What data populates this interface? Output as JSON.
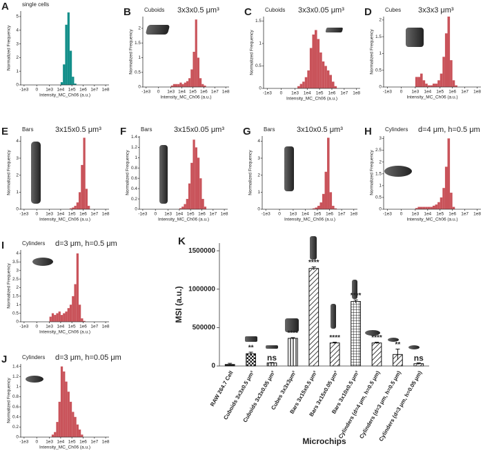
{
  "chart_data": [
    {
      "type": "histogram",
      "panel_label": "A",
      "title": "single cells",
      "xlabel": "Intensity_MC_Ch06 (a.u.)",
      "ylabel": "Normalized Frequency",
      "color": "#138f8a",
      "xscale": "biexponential",
      "bins": [
        1000,
        1585,
        2512,
        3981,
        6310,
        10000,
        15849,
        25119,
        39811,
        63096,
        100000,
        158489,
        251189,
        398107,
        630957,
        1000000,
        1584893,
        2511886,
        3981072,
        6309573,
        10000000
      ],
      "counts": [
        0,
        0,
        0,
        0,
        0,
        0.2,
        1.5,
        4.4,
        5.3,
        2.5,
        0.6,
        0.1,
        0,
        0,
        0,
        0,
        0,
        0,
        0,
        0
      ],
      "xlim": [
        -2000,
        200000000
      ],
      "xticks": [
        {
          "value": -1000,
          "label": "-1e3"
        },
        0,
        {
          "value": 1000,
          "label": "1e3"
        },
        {
          "value": 10000,
          "label": "1e4"
        },
        {
          "value": 100000,
          "label": "1e5"
        },
        {
          "value": 1000000,
          "label": "1e6"
        },
        {
          "value": 10000000,
          "label": "1e7"
        },
        {
          "value": 100000000,
          "label": "1e8"
        }
      ],
      "ylim": [
        0,
        5.4
      ],
      "yticks": [
        0,
        1,
        2,
        3,
        4,
        5
      ]
    },
    {
      "type": "histogram",
      "panel_label": "B",
      "title": "Cuboids",
      "subtitle": "3x3x0.5 μm³",
      "xlabel": "Intensity_MC_Ch06 (a.u.)",
      "ylabel": "Normalized Frequency",
      "color": "#c9535a",
      "xscale": "biexponential",
      "bins": [
        1000,
        1585,
        2512,
        3981,
        6310,
        10000,
        15849,
        25119,
        39811,
        63096,
        100000,
        158489,
        251189,
        398107,
        630957,
        1000000,
        1584893,
        2511886,
        3981072,
        6309573,
        10000000
      ],
      "counts": [
        0.05,
        0.1,
        0.1,
        0.1,
        0.15,
        0.1,
        0.15,
        0.2,
        0.3,
        0.6,
        1.2,
        2.3,
        1.0,
        0.3,
        0.1,
        0.05,
        0,
        0,
        0,
        0
      ],
      "xlim": [
        -2000,
        200000000
      ],
      "xticks": [
        {
          "value": -1000,
          "label": "-1e3"
        },
        0,
        {
          "value": 1000,
          "label": "1e3"
        },
        {
          "value": 10000,
          "label": "1e4"
        },
        {
          "value": 100000,
          "label": "1e5"
        },
        {
          "value": 1000000,
          "label": "1e6"
        },
        {
          "value": 10000000,
          "label": "1e7"
        },
        {
          "value": 100000000,
          "label": "1e8"
        }
      ],
      "ylim": [
        0,
        2.4
      ],
      "yticks": [
        0,
        0.5,
        1,
        1.5,
        2
      ]
    },
    {
      "type": "histogram",
      "panel_label": "C",
      "title": "Cuboids",
      "subtitle": "3x3x0.05 μm³",
      "xlabel": "Intensity_MC_Ch06 (a.u.)",
      "ylabel": "Normalized Frequency",
      "color": "#c9535a",
      "xscale": "biexponential",
      "bins": [
        1000,
        1585,
        2512,
        3981,
        6310,
        10000,
        15849,
        25119,
        39811,
        63096,
        100000,
        158489,
        251189,
        398107,
        630957,
        1000000,
        1584893,
        2511886,
        3981072,
        6309573,
        10000000
      ],
      "counts": [
        0,
        0.05,
        0.1,
        0.15,
        0.25,
        0.4,
        0.9,
        1.2,
        1.3,
        1.1,
        0.8,
        0.6,
        0.5,
        0.4,
        0.3,
        0.15,
        0.05,
        0,
        0,
        0
      ],
      "xlim": [
        -2000,
        200000000
      ],
      "xticks": [
        {
          "value": -1000,
          "label": "-1e3"
        },
        0,
        {
          "value": 1000,
          "label": "1e3"
        },
        {
          "value": 10000,
          "label": "1e4"
        },
        {
          "value": 100000,
          "label": "1e5"
        },
        {
          "value": 1000000,
          "label": "1e6"
        },
        {
          "value": 10000000,
          "label": "1e7"
        },
        {
          "value": 100000000,
          "label": "1e8"
        }
      ],
      "ylim": [
        0,
        1.6
      ],
      "yticks": [
        0,
        0.5,
        1,
        1.5
      ]
    },
    {
      "type": "histogram",
      "panel_label": "D",
      "title": "Cubes",
      "subtitle": "3x3x3 μm³",
      "xlabel": "Intensity_MC_Ch06 (a.u.)",
      "ylabel": "Normalized Frequency",
      "color": "#c9535a",
      "xscale": "biexponential",
      "bins": [
        1000,
        1585,
        2512,
        3981,
        6310,
        10000,
        15849,
        25119,
        39811,
        63096,
        100000,
        158489,
        251189,
        398107,
        630957,
        1000000,
        1584893,
        2511886,
        3981072,
        6309573,
        10000000
      ],
      "counts": [
        0.3,
        0.3,
        0.4,
        0.2,
        0.1,
        0.05,
        0.05,
        0.1,
        0.1,
        0.2,
        0.4,
        0.9,
        1.6,
        2.1,
        0.8,
        0.2,
        0.05,
        0,
        0,
        0
      ],
      "xlim": [
        -2000,
        200000000
      ],
      "xticks": [
        {
          "value": -1000,
          "label": "-1e3"
        },
        0,
        {
          "value": 1000,
          "label": "1e3"
        },
        {
          "value": 10000,
          "label": "1e4"
        },
        {
          "value": 100000,
          "label": "1e5"
        },
        {
          "value": 1000000,
          "label": "1e6"
        },
        {
          "value": 10000000,
          "label": "1e7"
        },
        {
          "value": 100000000,
          "label": "1e8"
        }
      ],
      "ylim": [
        0,
        2.1
      ],
      "yticks": [
        0,
        0.5,
        1,
        1.5,
        2
      ]
    },
    {
      "type": "histogram",
      "panel_label": "E",
      "title": "Bars",
      "subtitle": "3x15x0.5 μm³",
      "xlabel": "Intensity_MC_Ch06 (a.u.)",
      "ylabel": "Normalized Frequency",
      "color": "#c9535a",
      "xscale": "biexponential",
      "bins": [
        1000,
        1585,
        2512,
        3981,
        6310,
        10000,
        15849,
        25119,
        39811,
        63096,
        100000,
        158489,
        251189,
        398107,
        630957,
        1000000,
        1584893,
        2511886,
        3981072,
        6309573,
        10000000
      ],
      "counts": [
        0,
        0,
        0,
        0,
        0,
        0,
        0,
        0,
        0,
        0.05,
        0.1,
        0.2,
        0.4,
        1.0,
        2.6,
        4.2,
        1.2,
        0.2,
        0,
        0
      ],
      "xlim": [
        -2000,
        200000000
      ],
      "xticks": [
        {
          "value": -1000,
          "label": "-1e3"
        },
        0,
        {
          "value": 1000,
          "label": "1e3"
        },
        {
          "value": 10000,
          "label": "1e4"
        },
        {
          "value": 100000,
          "label": "1e5"
        },
        {
          "value": 1000000,
          "label": "1e6"
        },
        {
          "value": 10000000,
          "label": "1e7"
        },
        {
          "value": 100000000,
          "label": "1e8"
        }
      ],
      "ylim": [
        0,
        4.3
      ],
      "yticks": [
        0,
        1,
        2,
        3,
        4
      ]
    },
    {
      "type": "histogram",
      "panel_label": "F",
      "title": "Bars",
      "subtitle": "3x15x0.05 μm³",
      "xlabel": "Intensity_MC_Ch06 (a.u.)",
      "ylabel": "Normalized Frequency",
      "color": "#c9535a",
      "xscale": "biexponential",
      "bins": [
        1000,
        1585,
        2512,
        3981,
        6310,
        10000,
        15849,
        25119,
        39811,
        63096,
        100000,
        158489,
        251189,
        398107,
        630957,
        1000000,
        1584893,
        2511886,
        3981072,
        6309573,
        10000000
      ],
      "counts": [
        0,
        0,
        0,
        0,
        0,
        0.02,
        0.05,
        0.1,
        0.2,
        0.5,
        0.9,
        1.35,
        1.2,
        1.0,
        0.6,
        0.2,
        0.05,
        0,
        0,
        0
      ],
      "xlim": [
        -2000,
        200000000
      ],
      "xticks": [
        {
          "value": -1000,
          "label": "-1e3"
        },
        0,
        {
          "value": 1000,
          "label": "1e3"
        },
        {
          "value": 10000,
          "label": "1e4"
        },
        {
          "value": 100000,
          "label": "1e5"
        },
        {
          "value": 1000000,
          "label": "1e6"
        },
        {
          "value": 10000000,
          "label": "1e7"
        },
        {
          "value": 100000000,
          "label": "1e8"
        }
      ],
      "ylim": [
        0,
        1.42
      ],
      "yticks": [
        0,
        0.2,
        0.4,
        0.6,
        0.8,
        1,
        1.2,
        1.4
      ]
    },
    {
      "type": "histogram",
      "panel_label": "G",
      "title": "Bars",
      "subtitle": "3x10x0.5 μm³",
      "xlabel": "Intensity_MC_Ch06 (a.u.)",
      "ylabel": "Normalized Frequency",
      "color": "#c9535a",
      "xscale": "biexponential",
      "bins": [
        1000,
        1585,
        2512,
        3981,
        6310,
        10000,
        15849,
        25119,
        39811,
        63096,
        100000,
        158489,
        251189,
        398107,
        630957,
        1000000,
        1584893,
        2511886,
        3981072,
        6309573,
        10000000
      ],
      "counts": [
        0,
        0,
        0,
        0,
        0,
        0,
        0,
        0.02,
        0.05,
        0.1,
        0.2,
        0.4,
        0.9,
        2.2,
        4.2,
        1.0,
        0.2,
        0.05,
        0,
        0
      ],
      "xlim": [
        -2000,
        200000000
      ],
      "xticks": [
        {
          "value": -1000,
          "label": "-1e3"
        },
        0,
        {
          "value": 1000,
          "label": "1e3"
        },
        {
          "value": 10000,
          "label": "1e4"
        },
        {
          "value": 100000,
          "label": "1e5"
        },
        {
          "value": 1000000,
          "label": "1e6"
        },
        {
          "value": 10000000,
          "label": "1e7"
        },
        {
          "value": 100000000,
          "label": "1e8"
        }
      ],
      "ylim": [
        0,
        4.3
      ],
      "yticks": [
        0,
        1,
        2,
        3,
        4
      ]
    },
    {
      "type": "histogram",
      "panel_label": "H",
      "title": "Cylinders",
      "subtitle": "d=4 μm, h=0.5 μm",
      "xlabel": "Intensity_MC_Ch06 (a.u.)",
      "ylabel": "Normalized Frequency",
      "color": "#c9535a",
      "xscale": "biexponential",
      "bins": [
        1000,
        1585,
        2512,
        3981,
        6310,
        10000,
        15849,
        25119,
        39811,
        63096,
        100000,
        158489,
        251189,
        398107,
        630957,
        1000000,
        1584893,
        2511886,
        3981072,
        6309573,
        10000000
      ],
      "counts": [
        0.05,
        0.1,
        0.1,
        0.1,
        0.1,
        0.1,
        0.1,
        0.15,
        0.2,
        0.3,
        0.5,
        0.9,
        1.8,
        3.0,
        0.7,
        0.1,
        0,
        0,
        0,
        0
      ],
      "xlim": [
        -2000,
        200000000
      ],
      "xticks": [
        {
          "value": -1000,
          "label": "-1e3"
        },
        0,
        {
          "value": 1000,
          "label": "1e3"
        },
        {
          "value": 10000,
          "label": "1e4"
        },
        {
          "value": 100000,
          "label": "1e5"
        },
        {
          "value": 1000000,
          "label": "1e6"
        },
        {
          "value": 10000000,
          "label": "1e7"
        },
        {
          "value": 100000000,
          "label": "1e8"
        }
      ],
      "ylim": [
        0,
        3.1
      ],
      "yticks": [
        0,
        0.5,
        1,
        1.5,
        2,
        2.5,
        3
      ]
    },
    {
      "type": "histogram",
      "panel_label": "I",
      "title": "Cylinders",
      "subtitle": "d=3 μm, h=0.5 μm",
      "xlabel": "Intensity_MC_Ch06 (a.u.)",
      "ylabel": "Normalized Frequency",
      "color": "#c9535a",
      "xscale": "biexponential",
      "bins": [
        1000,
        1585,
        2512,
        3981,
        6310,
        10000,
        15849,
        25119,
        39811,
        63096,
        100000,
        158489,
        251189,
        398107,
        630957,
        1000000,
        1584893,
        2511886,
        3981072,
        6309573,
        10000000
      ],
      "counts": [
        0.3,
        0.5,
        0.4,
        0.5,
        0.6,
        0.4,
        0.5,
        0.6,
        0.8,
        1.0,
        1.5,
        2.2,
        4.0,
        1.0,
        0.2,
        0.05,
        0,
        0,
        0,
        0
      ],
      "xlim": [
        -2000,
        200000000
      ],
      "xticks": [
        {
          "value": -1000,
          "label": "-1e3"
        },
        0,
        {
          "value": 1000,
          "label": "1e3"
        },
        {
          "value": 10000,
          "label": "1e4"
        },
        {
          "value": 100000,
          "label": "1e5"
        },
        {
          "value": 1000000,
          "label": "1e6"
        },
        {
          "value": 10000000,
          "label": "1e7"
        },
        {
          "value": 100000000,
          "label": "1e8"
        }
      ],
      "ylim": [
        0,
        4.2
      ],
      "yticks": [
        0,
        0.5,
        1,
        1.5,
        2,
        2.5,
        3,
        3.5,
        4
      ]
    },
    {
      "type": "histogram",
      "panel_label": "J",
      "title": "Cylinders",
      "subtitle": "d=3 μm, h=0.05 μm",
      "xlabel": "Intensity_MC_Ch06 (a.u.)",
      "ylabel": "Normalized Frequency",
      "color": "#c9535a",
      "xscale": "biexponential",
      "bins": [
        1000,
        1585,
        2512,
        3981,
        6310,
        10000,
        15849,
        25119,
        39811,
        63096,
        100000,
        158489,
        251189,
        398107,
        630957,
        1000000,
        1584893,
        2511886,
        3981072,
        6309573,
        10000000
      ],
      "counts": [
        0,
        0.05,
        0.1,
        0.3,
        0.7,
        1.4,
        1.3,
        1.1,
        0.9,
        0.7,
        0.5,
        0.4,
        0.25,
        0.15,
        0.05,
        0,
        0,
        0,
        0,
        0
      ],
      "xlim": [
        -2000,
        200000000
      ],
      "xticks": [
        {
          "value": -1000,
          "label": "-1e3"
        },
        0,
        {
          "value": 1000,
          "label": "1e3"
        },
        {
          "value": 10000,
          "label": "1e4"
        },
        {
          "value": 100000,
          "label": "1e5"
        },
        {
          "value": 1000000,
          "label": "1e6"
        },
        {
          "value": 10000000,
          "label": "1e7"
        },
        {
          "value": 100000000,
          "label": "1e8"
        }
      ],
      "ylim": [
        0,
        1.45
      ],
      "yticks": [
        0,
        0.2,
        0.4,
        0.6,
        0.8,
        1,
        1.2,
        1.4
      ]
    },
    {
      "type": "bar",
      "panel_label": "K",
      "xlabel": "Microchips",
      "ylabel": "MSI (a.u.)",
      "categories": [
        "RAW 264.7 Cell",
        "Cuboids 3x3x0.5 μm³",
        "Cuboids 3x3x0.05 μm³",
        "Cubes 3x3x3μm³",
        "Bars 3x15x0.5 μm³",
        "Bars 3x15x0.05 μm³",
        "Bars 3x10x0.5 μm³",
        "Cylinders (d=4 μm, h=0.5 μm)",
        "Cylinders (d=3 μm, h=0.5 μm)",
        "Cylinders (d=3 μm, h=0.05 μm)"
      ],
      "values": [
        20000,
        160000,
        40000,
        360000,
        1270000,
        300000,
        840000,
        300000,
        150000,
        30000
      ],
      "errors": [
        15000,
        20000,
        5000,
        10000,
        20000,
        10000,
        20000,
        10000,
        70000,
        10000
      ],
      "significance": [
        null,
        "**",
        "ns",
        "****",
        "****",
        "****",
        "****",
        "****",
        "**",
        "ns"
      ],
      "bar_patterns": [
        "solid",
        "checker",
        "vertical",
        "vertical",
        "diagonal",
        "diagonal",
        "grid",
        "diagonal",
        "diagonal",
        "diagonal"
      ],
      "color": "#111111",
      "ylim": [
        0,
        1600000
      ],
      "yticks": [
        0,
        500000,
        1000000,
        1500000
      ]
    }
  ]
}
